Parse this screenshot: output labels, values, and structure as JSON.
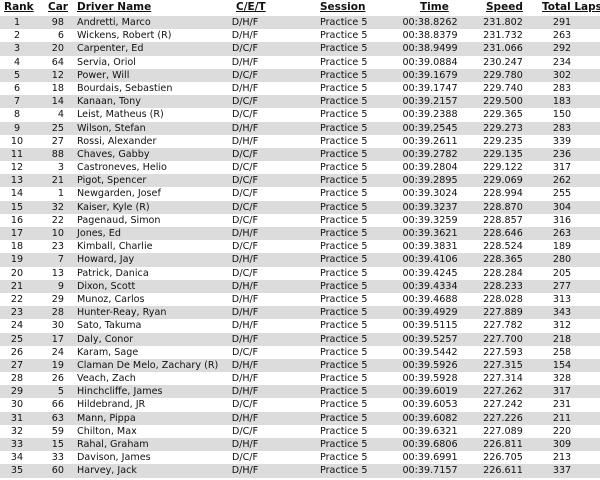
{
  "headers": {
    "rank": "Rank",
    "car": "Car",
    "driver": "Driver Name",
    "cet": "C/E/T",
    "session": "Session",
    "time": "Time",
    "speed": "Speed",
    "laps": "Total Laps"
  },
  "colors": {
    "stripe": "#dcdcdc"
  },
  "rows": [
    [
      "1",
      "98",
      "Andretti, Marco",
      "D/H/F",
      "Practice 5",
      "00:38.8262",
      "231.802",
      "291"
    ],
    [
      "2",
      "6",
      "Wickens, Robert (R)",
      "D/H/F",
      "Practice 5",
      "00:38.8379",
      "231.732",
      "263"
    ],
    [
      "3",
      "20",
      "Carpenter, Ed",
      "D/C/F",
      "Practice 5",
      "00:38.9499",
      "231.066",
      "292"
    ],
    [
      "4",
      "64",
      "Servia, Oriol",
      "D/H/F",
      "Practice 5",
      "00:39.0884",
      "230.247",
      "234"
    ],
    [
      "5",
      "12",
      "Power, Will",
      "D/C/F",
      "Practice 5",
      "00:39.1679",
      "229.780",
      "302"
    ],
    [
      "6",
      "18",
      "Bourdais, Sebastien",
      "D/H/F",
      "Practice 5",
      "00:39.1747",
      "229.740",
      "283"
    ],
    [
      "7",
      "14",
      "Kanaan, Tony",
      "D/C/F",
      "Practice 5",
      "00:39.2157",
      "229.500",
      "183"
    ],
    [
      "8",
      "4",
      "Leist, Matheus (R)",
      "D/C/F",
      "Practice 5",
      "00:39.2388",
      "229.365",
      "150"
    ],
    [
      "9",
      "25",
      "Wilson, Stefan",
      "D/H/F",
      "Practice 5",
      "00:39.2545",
      "229.273",
      "283"
    ],
    [
      "10",
      "27",
      "Rossi, Alexander",
      "D/H/F",
      "Practice 5",
      "00:39.2611",
      "229.235",
      "339"
    ],
    [
      "11",
      "88",
      "Chaves, Gabby",
      "D/C/F",
      "Practice 5",
      "00:39.2782",
      "229.135",
      "236"
    ],
    [
      "12",
      "3",
      "Castroneves, Helio",
      "D/C/F",
      "Practice 5",
      "00:39.2804",
      "229.122",
      "317"
    ],
    [
      "13",
      "21",
      "Pigot, Spencer",
      "D/C/F",
      "Practice 5",
      "00:39.2895",
      "229.069",
      "262"
    ],
    [
      "14",
      "1",
      "Newgarden, Josef",
      "D/C/F",
      "Practice 5",
      "00:39.3024",
      "228.994",
      "255"
    ],
    [
      "15",
      "32",
      "Kaiser, Kyle (R)",
      "D/C/F",
      "Practice 5",
      "00:39.3237",
      "228.870",
      "304"
    ],
    [
      "16",
      "22",
      "Pagenaud, Simon",
      "D/C/F",
      "Practice 5",
      "00:39.3259",
      "228.857",
      "316"
    ],
    [
      "17",
      "10",
      "Jones, Ed",
      "D/H/F",
      "Practice 5",
      "00:39.3621",
      "228.646",
      "263"
    ],
    [
      "18",
      "23",
      "Kimball, Charlie",
      "D/C/F",
      "Practice 5",
      "00:39.3831",
      "228.524",
      "189"
    ],
    [
      "19",
      "7",
      "Howard, Jay",
      "D/H/F",
      "Practice 5",
      "00:39.4106",
      "228.365",
      "280"
    ],
    [
      "20",
      "13",
      "Patrick, Danica",
      "D/C/F",
      "Practice 5",
      "00:39.4245",
      "228.284",
      "205"
    ],
    [
      "21",
      "9",
      "Dixon, Scott",
      "D/H/F",
      "Practice 5",
      "00:39.4334",
      "228.233",
      "277"
    ],
    [
      "22",
      "29",
      "Munoz, Carlos",
      "D/H/F",
      "Practice 5",
      "00:39.4688",
      "228.028",
      "313"
    ],
    [
      "23",
      "28",
      "Hunter-Reay, Ryan",
      "D/H/F",
      "Practice 5",
      "00:39.4929",
      "227.889",
      "343"
    ],
    [
      "24",
      "30",
      "Sato, Takuma",
      "D/H/F",
      "Practice 5",
      "00:39.5115",
      "227.782",
      "312"
    ],
    [
      "25",
      "17",
      "Daly, Conor",
      "D/H/F",
      "Practice 5",
      "00:39.5257",
      "227.700",
      "218"
    ],
    [
      "26",
      "24",
      "Karam, Sage",
      "D/C/F",
      "Practice 5",
      "00:39.5442",
      "227.593",
      "258"
    ],
    [
      "27",
      "19",
      "Claman De Melo, Zachary (R)",
      "D/H/F",
      "Practice 5",
      "00:39.5926",
      "227.315",
      "154"
    ],
    [
      "28",
      "26",
      "Veach, Zach",
      "D/H/F",
      "Practice 5",
      "00:39.5928",
      "227.314",
      "328"
    ],
    [
      "29",
      "5",
      "Hinchcliffe, James",
      "D/H/F",
      "Practice 5",
      "00:39.6019",
      "227.262",
      "317"
    ],
    [
      "30",
      "66",
      "Hildebrand, JR",
      "D/C/F",
      "Practice 5",
      "00:39.6053",
      "227.242",
      "231"
    ],
    [
      "31",
      "63",
      "Mann, Pippa",
      "D/H/F",
      "Practice 5",
      "00:39.6082",
      "227.226",
      "211"
    ],
    [
      "32",
      "59",
      "Chilton, Max",
      "D/C/F",
      "Practice 5",
      "00:39.6321",
      "227.089",
      "220"
    ],
    [
      "33",
      "15",
      "Rahal, Graham",
      "D/H/F",
      "Practice 5",
      "00:39.6806",
      "226.811",
      "309"
    ],
    [
      "34",
      "33",
      "Davison, James",
      "D/C/F",
      "Practice 5",
      "00:39.6991",
      "226.705",
      "213"
    ],
    [
      "35",
      "60",
      "Harvey, Jack",
      "D/H/F",
      "Practice 5",
      "00:39.7157",
      "226.611",
      "337"
    ]
  ]
}
